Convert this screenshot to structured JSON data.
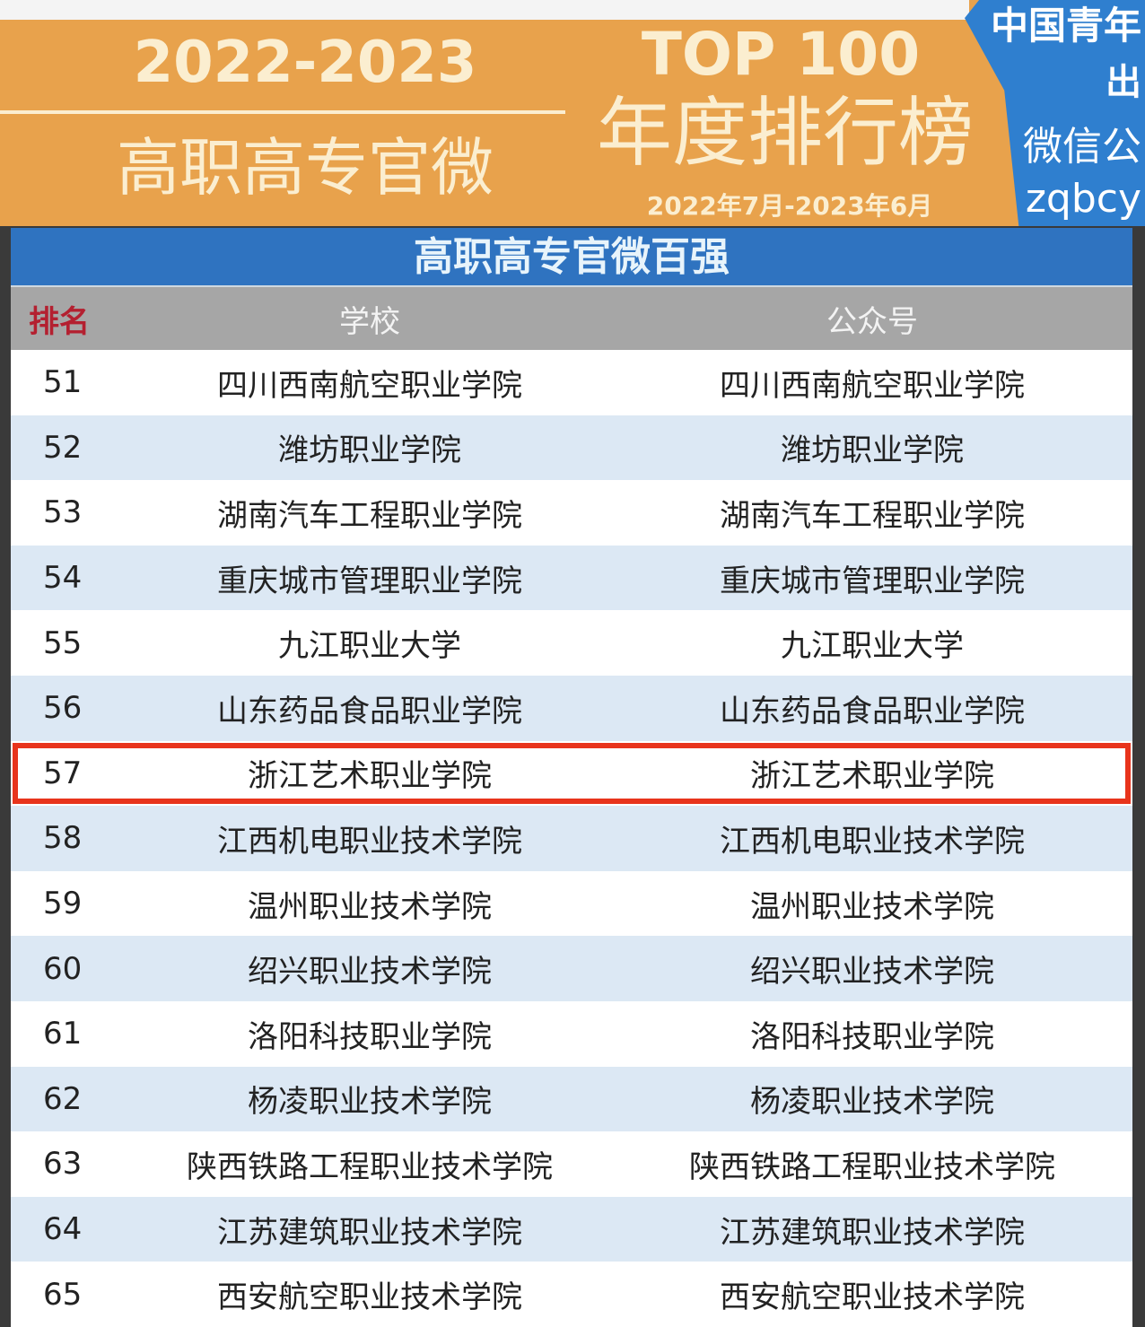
{
  "banner": {
    "year": "2022-2023",
    "subtitle": "高职高专官微",
    "top": "TOP 100",
    "ranking": "年度排行榜",
    "period": "2022年7月-2023年6月"
  },
  "badge": {
    "line1": "中国青年",
    "line2": "出",
    "line3": "微信公",
    "line4": "zqbcy"
  },
  "table": {
    "title": "高职高专官微百强",
    "headers": [
      "排名",
      "学校",
      "公众号"
    ],
    "highlight_rank": "57",
    "highlight_color": "#e8341c",
    "rows": [
      {
        "rank": "51",
        "school": "四川西南航空职业学院",
        "account": "四川西南航空职业学院"
      },
      {
        "rank": "52",
        "school": "潍坊职业学院",
        "account": "潍坊职业学院"
      },
      {
        "rank": "53",
        "school": "湖南汽车工程职业学院",
        "account": "湖南汽车工程职业学院"
      },
      {
        "rank": "54",
        "school": "重庆城市管理职业学院",
        "account": "重庆城市管理职业学院"
      },
      {
        "rank": "55",
        "school": "九江职业大学",
        "account": "九江职业大学"
      },
      {
        "rank": "56",
        "school": "山东药品食品职业学院",
        "account": "山东药品食品职业学院"
      },
      {
        "rank": "57",
        "school": "浙江艺术职业学院",
        "account": "浙江艺术职业学院"
      },
      {
        "rank": "58",
        "school": "江西机电职业技术学院",
        "account": "江西机电职业技术学院"
      },
      {
        "rank": "59",
        "school": "温州职业技术学院",
        "account": "温州职业技术学院"
      },
      {
        "rank": "60",
        "school": "绍兴职业技术学院",
        "account": "绍兴职业技术学院"
      },
      {
        "rank": "61",
        "school": "洛阳科技职业学院",
        "account": "洛阳科技职业学院"
      },
      {
        "rank": "62",
        "school": "杨凌职业技术学院",
        "account": "杨凌职业技术学院"
      },
      {
        "rank": "63",
        "school": "陕西铁路工程职业技术学院",
        "account": "陕西铁路工程职业技术学院"
      },
      {
        "rank": "64",
        "school": "江苏建筑职业技术学院",
        "account": "江苏建筑职业技术学院"
      },
      {
        "rank": "65",
        "school": "西安航空职业技术学院",
        "account": "西安航空职业技术学院"
      }
    ]
  }
}
